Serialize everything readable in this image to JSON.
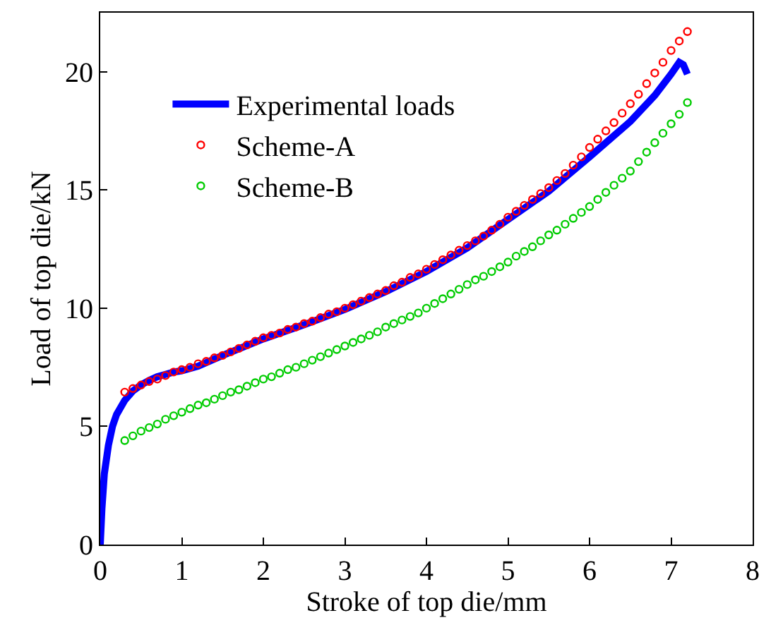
{
  "chart_data": {
    "type": "scatter",
    "xlabel": "Stroke of top die/mm",
    "ylabel": "Load of top die/kN",
    "xlim": [
      0,
      8
    ],
    "ylim": [
      0,
      22.5
    ],
    "xticks": [
      0,
      1,
      2,
      3,
      4,
      5,
      6,
      7,
      8
    ],
    "yticks": [
      0,
      5,
      10,
      15,
      20
    ],
    "legend": "top left",
    "series": [
      {
        "name": "Experimental loads",
        "type": "line",
        "marker": "none",
        "color": "#0000ff",
        "x": [
          0,
          0.02,
          0.05,
          0.1,
          0.15,
          0.2,
          0.3,
          0.4,
          0.5,
          0.6,
          0.7,
          0.8,
          0.9,
          1.0,
          1.2,
          1.5,
          2.0,
          2.5,
          3.0,
          3.5,
          4.0,
          4.5,
          5.0,
          5.5,
          6.0,
          6.5,
          6.8,
          7.0,
          7.1,
          7.15,
          7.2
        ],
        "values": [
          0,
          1.5,
          3,
          4.2,
          5.0,
          5.5,
          6.1,
          6.5,
          6.75,
          6.95,
          7.1,
          7.2,
          7.3,
          7.35,
          7.55,
          8.0,
          8.7,
          9.3,
          9.95,
          10.7,
          11.55,
          12.55,
          13.75,
          14.95,
          16.4,
          17.9,
          19.0,
          19.9,
          20.4,
          20.3,
          19.9
        ]
      },
      {
        "name": "Scheme-A",
        "marker": "circle",
        "color": "#ff0000",
        "x": [
          0.3,
          0.4,
          0.5,
          0.6,
          0.7,
          0.8,
          0.9,
          1.0,
          1.1,
          1.2,
          1.3,
          1.4,
          1.5,
          1.6,
          1.7,
          1.8,
          1.9,
          2.0,
          2.1,
          2.2,
          2.3,
          2.4,
          2.5,
          2.6,
          2.7,
          2.8,
          2.9,
          3.0,
          3.1,
          3.2,
          3.3,
          3.4,
          3.5,
          3.6,
          3.7,
          3.8,
          3.9,
          4.0,
          4.1,
          4.2,
          4.3,
          4.4,
          4.5,
          4.6,
          4.7,
          4.8,
          4.9,
          5.0,
          5.1,
          5.2,
          5.3,
          5.4,
          5.5,
          5.6,
          5.7,
          5.8,
          5.9,
          6.0,
          6.1,
          6.2,
          6.3,
          6.4,
          6.5,
          6.6,
          6.7,
          6.8,
          6.9,
          7.0,
          7.1,
          7.2
        ],
        "values": [
          6.45,
          6.6,
          6.75,
          6.9,
          7.0,
          7.15,
          7.3,
          7.4,
          7.5,
          7.65,
          7.75,
          7.9,
          8.0,
          8.15,
          8.3,
          8.45,
          8.6,
          8.75,
          8.85,
          8.95,
          9.1,
          9.2,
          9.35,
          9.45,
          9.6,
          9.75,
          9.85,
          10.0,
          10.15,
          10.3,
          10.45,
          10.6,
          10.75,
          10.95,
          11.1,
          11.3,
          11.45,
          11.65,
          11.85,
          12.05,
          12.25,
          12.45,
          12.65,
          12.85,
          13.05,
          13.3,
          13.55,
          13.85,
          14.1,
          14.35,
          14.6,
          14.85,
          15.1,
          15.4,
          15.7,
          16.05,
          16.4,
          16.8,
          17.15,
          17.5,
          17.85,
          18.25,
          18.65,
          19.05,
          19.5,
          19.95,
          20.4,
          20.9,
          21.3,
          21.7
        ]
      },
      {
        "name": "Scheme-B",
        "marker": "circle",
        "color": "#00cc00",
        "x": [
          0.3,
          0.4,
          0.5,
          0.6,
          0.7,
          0.8,
          0.9,
          1.0,
          1.1,
          1.2,
          1.3,
          1.4,
          1.5,
          1.6,
          1.7,
          1.8,
          1.9,
          2.0,
          2.1,
          2.2,
          2.3,
          2.4,
          2.5,
          2.6,
          2.7,
          2.8,
          2.9,
          3.0,
          3.1,
          3.2,
          3.3,
          3.4,
          3.5,
          3.6,
          3.7,
          3.8,
          3.9,
          4.0,
          4.1,
          4.2,
          4.3,
          4.4,
          4.5,
          4.6,
          4.7,
          4.8,
          4.9,
          5.0,
          5.1,
          5.2,
          5.3,
          5.4,
          5.5,
          5.6,
          5.7,
          5.8,
          5.9,
          6.0,
          6.1,
          6.2,
          6.3,
          6.4,
          6.5,
          6.6,
          6.7,
          6.8,
          6.9,
          7.0,
          7.1,
          7.2
        ],
        "values": [
          4.4,
          4.6,
          4.8,
          4.95,
          5.1,
          5.3,
          5.45,
          5.6,
          5.75,
          5.9,
          6.0,
          6.15,
          6.3,
          6.45,
          6.55,
          6.7,
          6.85,
          7.0,
          7.1,
          7.25,
          7.4,
          7.5,
          7.65,
          7.8,
          7.95,
          8.1,
          8.25,
          8.4,
          8.55,
          8.7,
          8.85,
          9.0,
          9.2,
          9.35,
          9.5,
          9.65,
          9.8,
          10.0,
          10.2,
          10.4,
          10.6,
          10.8,
          11.0,
          11.2,
          11.35,
          11.55,
          11.75,
          11.95,
          12.2,
          12.4,
          12.6,
          12.85,
          13.1,
          13.3,
          13.55,
          13.8,
          14.05,
          14.3,
          14.6,
          14.9,
          15.2,
          15.5,
          15.8,
          16.2,
          16.6,
          17.0,
          17.4,
          17.8,
          18.2,
          18.7
        ]
      }
    ]
  }
}
